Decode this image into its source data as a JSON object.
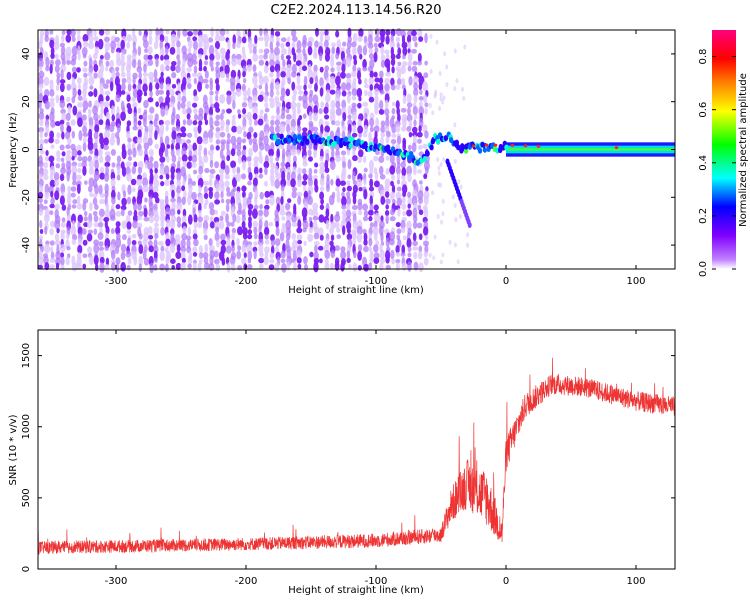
{
  "title": "C2E2.2024.113.14.56.R20",
  "chart_data": [
    {
      "type": "heatmap",
      "xlabel": "Height of straight line (km)",
      "ylabel": "Frequency (Hz)",
      "xlim": [
        -360,
        130
      ],
      "ylim": [
        -50,
        50
      ],
      "x_ticks": [
        -300,
        -200,
        -100,
        0,
        100
      ],
      "y_ticks": [
        -40,
        -20,
        0,
        20,
        40
      ],
      "noise_region_x": [
        -360,
        -60
      ],
      "colorbar": {
        "label": "Normalized spectral amplitude",
        "range": [
          0,
          0.9
        ],
        "ticks": [
          0.0,
          0.2,
          0.4,
          0.6,
          0.8
        ],
        "colormap": [
          "#ffffff",
          "#8000ff",
          "#0000ff",
          "#00ffff",
          "#00ff00",
          "#ffff00",
          "#ff8000",
          "#ff0000",
          "#ff0080"
        ]
      },
      "signal_track": [
        {
          "x": -180,
          "y": 4
        },
        {
          "x": -150,
          "y": 4
        },
        {
          "x": -120,
          "y": 3
        },
        {
          "x": -100,
          "y": 1
        },
        {
          "x": -80,
          "y": -2
        },
        {
          "x": -65,
          "y": -5
        },
        {
          "x": -55,
          "y": 4
        },
        {
          "x": -45,
          "y": 6
        },
        {
          "x": -35,
          "y": 0
        },
        {
          "x": -20,
          "y": 1
        },
        {
          "x": 0,
          "y": 1
        },
        {
          "x": 50,
          "y": 0
        },
        {
          "x": 130,
          "y": 0
        }
      ]
    },
    {
      "type": "line",
      "xlabel": "Height of straight line (km)",
      "ylabel": "SNR (10 * v/v)",
      "xlim": [
        -360,
        130
      ],
      "ylim": [
        0,
        1680
      ],
      "x_ticks": [
        -300,
        -200,
        -100,
        0,
        100
      ],
      "y_ticks": [
        0,
        500,
        1000,
        1500
      ],
      "series": [
        {
          "color": "#ee3333",
          "envelope": [
            {
              "x": -360,
              "mean": 150,
              "spread": 90
            },
            {
              "x": -200,
              "mean": 175,
              "spread": 90
            },
            {
              "x": -100,
              "mean": 200,
              "spread": 100
            },
            {
              "x": -50,
              "mean": 240,
              "spread": 110
            },
            {
              "x": -42,
              "mean": 450,
              "spread": 250
            },
            {
              "x": -30,
              "mean": 600,
              "spread": 350
            },
            {
              "x": -15,
              "mean": 500,
              "spread": 400
            },
            {
              "x": -3,
              "mean": 250,
              "spread": 200
            },
            {
              "x": 0,
              "mean": 800,
              "spread": 250
            },
            {
              "x": 15,
              "mean": 1150,
              "spread": 180
            },
            {
              "x": 35,
              "mean": 1300,
              "spread": 150
            },
            {
              "x": 60,
              "mean": 1280,
              "spread": 140
            },
            {
              "x": 100,
              "mean": 1180,
              "spread": 140
            },
            {
              "x": 130,
              "mean": 1140,
              "spread": 140
            }
          ]
        }
      ]
    }
  ]
}
